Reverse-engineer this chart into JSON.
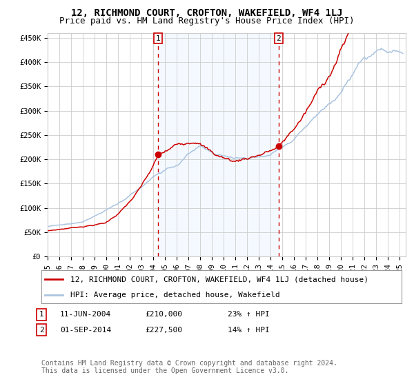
{
  "title": "12, RICHMOND COURT, CROFTON, WAKEFIELD, WF4 1LJ",
  "subtitle": "Price paid vs. HM Land Registry's House Price Index (HPI)",
  "ylim": [
    0,
    460000
  ],
  "yticks": [
    0,
    50000,
    100000,
    150000,
    200000,
    250000,
    300000,
    350000,
    400000,
    450000
  ],
  "ytick_labels": [
    "£0",
    "£50K",
    "£100K",
    "£150K",
    "£200K",
    "£250K",
    "£300K",
    "£350K",
    "£400K",
    "£450K"
  ],
  "xlim_start": 1995,
  "xlim_end": 2025.5,
  "background_color": "#ffffff",
  "grid_color": "#cccccc",
  "hpi_line_color": "#aac4e0",
  "price_line_color": "#cc0000",
  "shade_color": "#ddeeff",
  "vline_color": "#cc0000",
  "marker1_price": 210000,
  "marker2_price": 227500,
  "legend1_text": "12, RICHMOND COURT, CROFTON, WAKEFIELD, WF4 1LJ (detached house)",
  "legend2_text": "HPI: Average price, detached house, Wakefield",
  "ann1_num": "1",
  "ann1_text": "11-JUN-2004",
  "ann1_price": "£210,000",
  "ann1_hpi": "23% ↑ HPI",
  "ann2_num": "2",
  "ann2_text": "01-SEP-2014",
  "ann2_price": "£227,500",
  "ann2_hpi": "14% ↑ HPI",
  "footer_line1": "Contains HM Land Registry data © Crown copyright and database right 2024.",
  "footer_line2": "This data is licensed under the Open Government Licence v3.0.",
  "title_fontsize": 10,
  "subtitle_fontsize": 9,
  "tick_fontsize": 7.5,
  "legend_fontsize": 8,
  "ann_fontsize": 8,
  "footer_fontsize": 7
}
